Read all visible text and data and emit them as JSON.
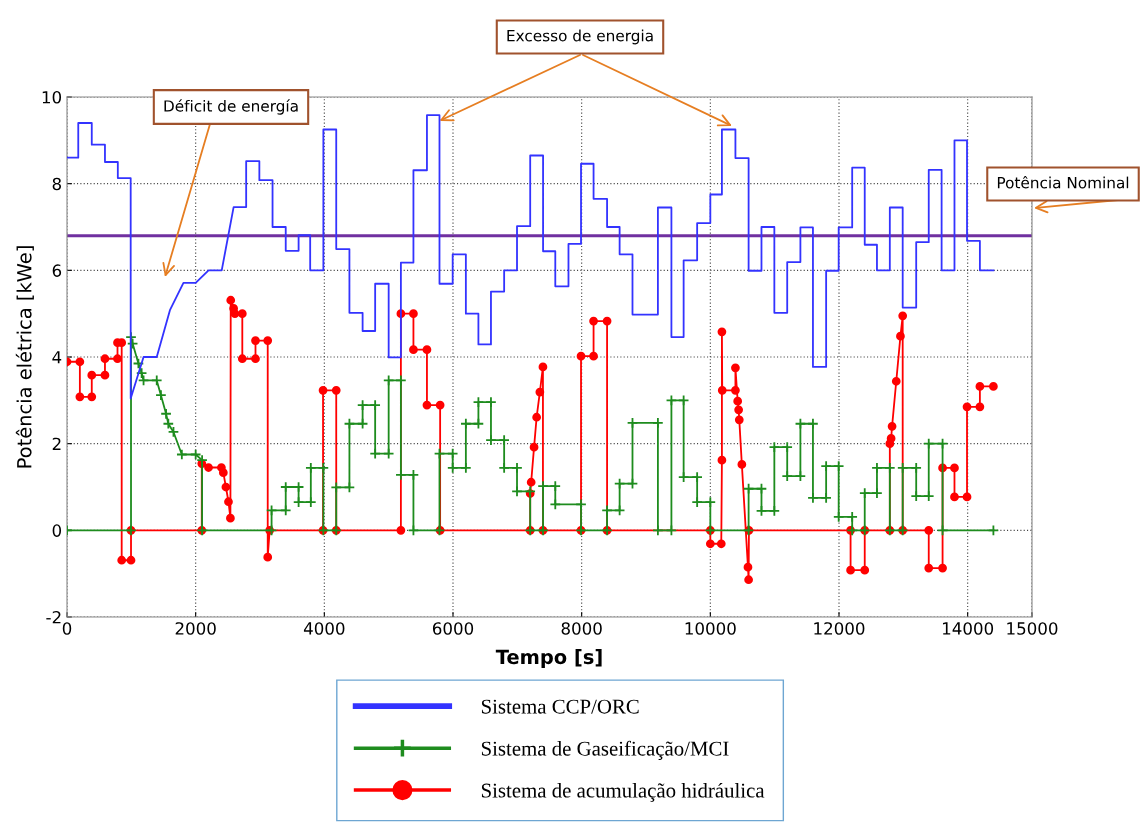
{
  "chart_data": {
    "type": "line",
    "xlabel": "Tempo [s]",
    "ylabel": "Potência elétrica [kWe]",
    "xlim": [
      0,
      15000
    ],
    "xticks": [
      0,
      2000,
      4000,
      6000,
      8000,
      10000,
      12000,
      14000,
      15000
    ],
    "ylim": [
      -2,
      10
    ],
    "yticks": [
      -2,
      0,
      2,
      4,
      6,
      8,
      10
    ],
    "grid": true,
    "legend": "bottom",
    "ref_lines": [
      {
        "axis": "y",
        "value": 6.8,
        "color": "#7030a0"
      }
    ],
    "annotations": [
      "Déficit de energía",
      {
        "text": "Excesso de energia",
        "x": 5790,
        "y": 9.45
      },
      "Potência Nominal"
    ],
    "series": [
      {
        "name": "Sistema CCP/ORC",
        "color": "#3333ff",
        "marker": "none",
        "line_style": "solid",
        "x": [
          0,
          175,
          175,
          385,
          385,
          590,
          590,
          790,
          790,
          990,
          990,
          1190,
          1395,
          1600,
          1810,
          2000,
          2200,
          2405,
          2590,
          2785,
          2785,
          2990,
          2990,
          3195,
          3195,
          3400,
          3400,
          3600,
          3600,
          3780,
          3780,
          3985,
          3985,
          4185,
          4185,
          4390,
          4390,
          4595,
          4595,
          4790,
          4790,
          5000,
          5000,
          5190,
          5190,
          5385,
          5385,
          5595,
          5595,
          5790,
          5790,
          5995,
          5995,
          6200,
          6200,
          6395,
          6395,
          6590,
          6590,
          6795,
          6795,
          6995,
          6995,
          7200,
          7200,
          7400,
          7400,
          7590,
          7590,
          7795,
          7795,
          7990,
          7990,
          8185,
          8185,
          8395,
          8395,
          8590,
          8590,
          8790,
          8790,
          9185,
          9185,
          9395,
          9395,
          9585,
          9585,
          9795,
          9795,
          10000,
          10000,
          10180,
          10180,
          10390,
          10390,
          10595,
          10595,
          10795,
          10795,
          10995,
          10995,
          11195,
          11195,
          11400,
          11400,
          11595,
          11595,
          11800,
          11800,
          11995,
          11995,
          12205,
          12205,
          12400,
          12400,
          12590,
          12590,
          12790,
          12790,
          12990,
          12990,
          13200,
          13200,
          13395,
          13395,
          13595,
          13595,
          13795,
          13795,
          13990,
          13990,
          14190,
          14190,
          14400
        ],
        "values": [
          8.6,
          8.6,
          9.4,
          9.4,
          8.9,
          8.9,
          8.5,
          8.5,
          8.13,
          8.13,
          3.04,
          4.0,
          4.0,
          5.08,
          5.71,
          5.71,
          6.0,
          6.0,
          7.46,
          7.46,
          8.52,
          8.52,
          8.08,
          8.08,
          7.0,
          7.0,
          6.45,
          6.45,
          6.81,
          6.81,
          6.0,
          6.0,
          9.25,
          9.25,
          6.49,
          6.49,
          5.02,
          5.02,
          4.6,
          4.6,
          5.69,
          5.69,
          3.99,
          3.99,
          6.18,
          6.18,
          8.31,
          8.31,
          9.58,
          9.58,
          5.69,
          5.69,
          6.37,
          6.37,
          5.0,
          5.0,
          4.29,
          4.29,
          5.51,
          5.51,
          6.0,
          6.0,
          7.02,
          7.02,
          8.65,
          8.65,
          6.44,
          6.44,
          5.63,
          5.63,
          6.61,
          6.61,
          8.46,
          8.46,
          7.65,
          7.65,
          7.0,
          7.0,
          6.37,
          6.37,
          4.98,
          4.98,
          7.45,
          7.45,
          4.46,
          4.46,
          6.23,
          6.23,
          7.09,
          7.09,
          7.75,
          7.75,
          9.25,
          9.25,
          8.59,
          8.59,
          5.99,
          5.99,
          7.0,
          7.0,
          5.02,
          5.02,
          6.19,
          6.19,
          6.99,
          6.99,
          3.77,
          3.77,
          5.99,
          5.99,
          6.99,
          6.99,
          8.37,
          8.37,
          6.59,
          6.59,
          6.0,
          6.0,
          7.45,
          7.45,
          5.14,
          5.14,
          6.65,
          6.65,
          8.32,
          8.32,
          6.0,
          6.0,
          9.0,
          9.0,
          6.68,
          6.68,
          6.0,
          6.0
        ]
      },
      {
        "name": "Sistema de Gaseificação/MCI",
        "color": "#1e8c1e",
        "marker": "cross",
        "line_style": "solid",
        "x": [
          0,
          995,
          995,
          1020,
          1110,
          1160,
          1190,
          1395,
          1460,
          1540,
          1575,
          1655,
          1785,
          2000,
          2100,
          2100,
          3180,
          3180,
          3400,
          3400,
          3600,
          3600,
          3790,
          3790,
          3985,
          3985,
          4185,
          4185,
          4390,
          4390,
          4595,
          4595,
          4790,
          4790,
          5000,
          5000,
          5190,
          5190,
          5385,
          5385,
          5790,
          5790,
          5995,
          5995,
          6200,
          6200,
          6395,
          6395,
          6590,
          6590,
          6795,
          6795,
          6995,
          6995,
          7200,
          7200,
          7400,
          7400,
          7590,
          7590,
          7990,
          7990,
          8395,
          8395,
          8590,
          8590,
          8790,
          8790,
          9185,
          9185,
          9395,
          9395,
          9585,
          9585,
          9795,
          9795,
          10000,
          10000,
          10595,
          10595,
          10795,
          10795,
          10995,
          10995,
          11195,
          11195,
          11400,
          11400,
          11595,
          11595,
          11800,
          11800,
          11995,
          11995,
          12205,
          12205,
          12400,
          12400,
          12590,
          12590,
          12790,
          12790,
          12990,
          12990,
          13200,
          13200,
          13395,
          13395,
          13610,
          13610,
          14400
        ],
        "values": [
          0,
          0,
          4.46,
          4.31,
          3.85,
          3.63,
          3.46,
          3.46,
          3.12,
          2.69,
          2.46,
          2.27,
          1.75,
          1.75,
          1.62,
          0,
          0,
          0.46,
          0.46,
          1.0,
          1.0,
          0.65,
          0.65,
          1.44,
          1.44,
          0,
          0,
          0.99,
          0.99,
          2.46,
          2.46,
          2.89,
          2.89,
          1.77,
          1.77,
          3.46,
          3.46,
          1.28,
          1.28,
          0,
          0,
          1.77,
          1.77,
          1.44,
          1.44,
          2.46,
          2.46,
          2.96,
          2.96,
          2.08,
          2.08,
          1.44,
          1.44,
          0.9,
          0.9,
          0,
          0,
          1.02,
          1.02,
          0.6,
          0.6,
          0,
          0,
          0.46,
          0.46,
          1.08,
          1.08,
          2.48,
          2.48,
          0,
          0,
          3.0,
          3.0,
          1.23,
          1.23,
          0.65,
          0.65,
          0,
          0,
          0.96,
          0.96,
          0.45,
          0.45,
          1.92,
          1.92,
          1.25,
          1.25,
          2.46,
          2.46,
          0.75,
          0.75,
          1.48,
          1.48,
          0.31,
          0.31,
          0,
          0,
          0.86,
          0.86,
          1.44,
          1.44,
          0,
          0,
          1.44,
          1.44,
          0.79,
          0.79,
          2.0,
          2.0,
          0,
          0
        ]
      },
      {
        "name": "Sistema de acumulação hidráulica",
        "color": "#ff0000",
        "marker": "circle",
        "line_style": "solid",
        "x": [
          0,
          200,
          200,
          385,
          385,
          590,
          590,
          785,
          785,
          850,
          850,
          995,
          995,
          2095,
          2095,
          2200,
          2400,
          2430,
          2470,
          2510,
          2540,
          2545,
          2590,
          2610,
          2725,
          2725,
          2930,
          2930,
          3120,
          3120,
          3150,
          3980,
          3980,
          4185,
          4185,
          5190,
          5190,
          5385,
          5385,
          5595,
          5595,
          5800,
          5800,
          7200,
          7200,
          7215,
          7260,
          7300,
          7350,
          7398,
          7398,
          7990,
          7990,
          8185,
          8185,
          8395,
          8395,
          10000,
          10000,
          10170,
          10180,
          10180,
          10185,
          10390,
          10390,
          10425,
          10440,
          10450,
          10490,
          10585,
          10595,
          10600,
          12180,
          12180,
          12400,
          12400,
          12790,
          12790,
          12810,
          12825,
          12890,
          12955,
          12990,
          12990,
          13395,
          13395,
          13610,
          13610,
          13795,
          13795,
          13990,
          13990,
          14190,
          14190,
          14400
        ],
        "values": [
          3.89,
          3.89,
          3.08,
          3.08,
          3.58,
          3.58,
          3.96,
          3.96,
          4.33,
          4.33,
          -0.69,
          -0.69,
          0,
          0,
          1.54,
          1.45,
          1.45,
          1.33,
          1.0,
          0.66,
          0.28,
          5.31,
          5.12,
          5.0,
          5.0,
          3.96,
          3.96,
          4.38,
          4.38,
          -0.62,
          0,
          0,
          3.23,
          3.23,
          0,
          0,
          5.0,
          5.0,
          4.17,
          4.17,
          2.89,
          2.89,
          0,
          0,
          0.85,
          1.11,
          1.92,
          2.61,
          3.19,
          3.77,
          0,
          0,
          4.02,
          4.02,
          4.83,
          4.83,
          0,
          0,
          -0.31,
          -0.31,
          1.62,
          4.58,
          3.23,
          3.23,
          3.75,
          2.98,
          2.78,
          2.55,
          1.52,
          -0.85,
          -1.14,
          0,
          0,
          -0.92,
          -0.92,
          0,
          0,
          2.0,
          2.12,
          2.4,
          3.44,
          4.48,
          4.95,
          0,
          0,
          -0.87,
          -0.87,
          1.44,
          1.44,
          0.77,
          0.77,
          2.85,
          2.85,
          3.32,
          3.32
        ]
      }
    ]
  }
}
